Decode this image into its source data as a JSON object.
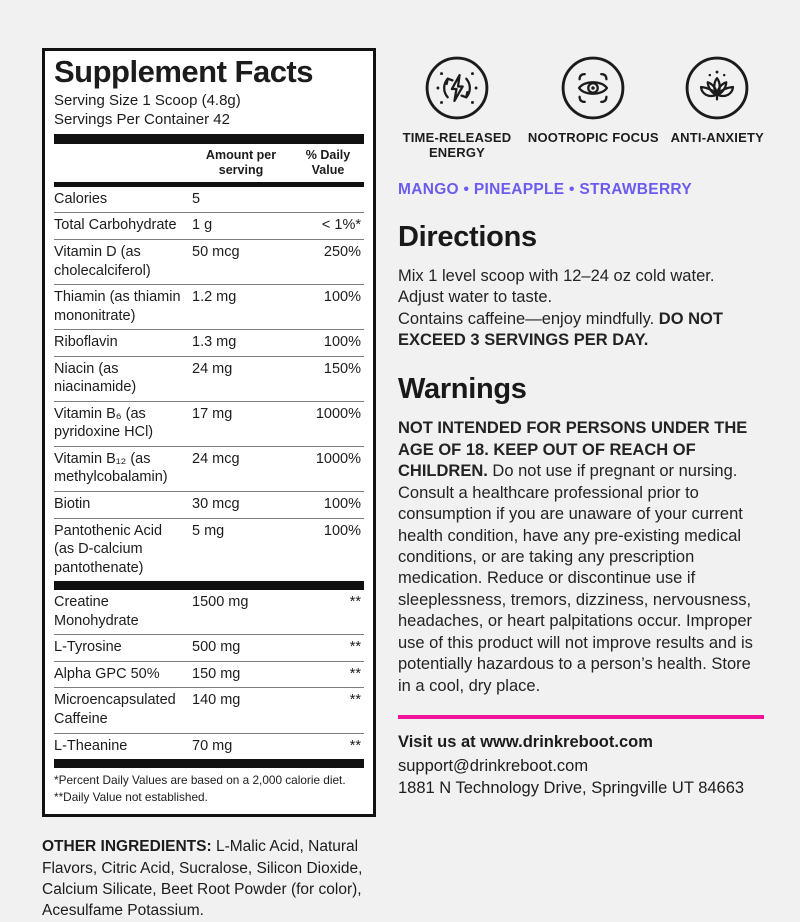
{
  "colors": {
    "accent_purple": "#6b5bee",
    "accent_pink": "#f0149b",
    "panel_border": "#111111",
    "page_bg": "#f1f1f2"
  },
  "panel": {
    "title": "Supplement Facts",
    "serving_size": "Serving Size 1 Scoop (4.8g)",
    "servings_per_container": "Servings Per Container 42",
    "col_amount": "Amount per serving",
    "col_dv": "% Daily Value",
    "rows_vitamins": [
      {
        "name": "Calories",
        "amount": "5",
        "dv": ""
      },
      {
        "name": "Total Carbohydrate",
        "amount": "1 g",
        "dv": "< 1%*"
      },
      {
        "name": "Vitamin D (as cholecalciferol)",
        "amount": "50 mcg",
        "dv": "250%"
      },
      {
        "name": "Thiamin (as thiamin mononitrate)",
        "amount": "1.2 mg",
        "dv": "100%"
      },
      {
        "name": "Riboflavin",
        "amount": "1.3 mg",
        "dv": "100%"
      },
      {
        "name": "Niacin (as niacinamide)",
        "amount": "24 mg",
        "dv": "150%"
      },
      {
        "name": "Vitamin B₆ (as pyridoxine HCl)",
        "amount": "17 mg",
        "dv": "1000%"
      },
      {
        "name": "Vitamin B₁₂ (as methylcobalamin)",
        "amount": "24 mcg",
        "dv": "1000%"
      },
      {
        "name": "Biotin",
        "amount": "30 mcg",
        "dv": "100%"
      },
      {
        "name": "Pantothenic Acid (as D-calcium pantothenate)",
        "amount": "5 mg",
        "dv": "100%"
      }
    ],
    "rows_actives": [
      {
        "name": "Creatine Monohydrate",
        "amount": "1500 mg",
        "dv": "**"
      },
      {
        "name": "L-Tyrosine",
        "amount": "500 mg",
        "dv": "**"
      },
      {
        "name": "Alpha GPC 50%",
        "amount": "150 mg",
        "dv": "**"
      },
      {
        "name": "Microencapsulated Caffeine",
        "amount": "140 mg",
        "dv": "**"
      },
      {
        "name": "L-Theanine",
        "amount": "70 mg",
        "dv": "**"
      }
    ],
    "footnote1": "*Percent Daily Values are based on a 2,000 calorie diet.",
    "footnote2": "**Daily Value not established."
  },
  "other_ingredients": {
    "label": "OTHER INGREDIENTS:",
    "text": " L-Malic Acid, Natural Flavors, Citric Acid, Sucralose, Silicon Dioxide, Calcium Silicate, Beet Root Powder (for color), Acesulfame Potassium."
  },
  "benefits": [
    {
      "icon": "time-released-energy-icon",
      "label": "TIME-RELEASED ENERGY"
    },
    {
      "icon": "nootropic-focus-icon",
      "label": "NOOTROPIC FOCUS"
    },
    {
      "icon": "anti-anxiety-icon",
      "label": "ANTI-ANXIETY"
    }
  ],
  "flavors": "MANGO • PINEAPPLE • STRAWBERRY",
  "directions": {
    "heading": "Directions",
    "line1": "Mix 1 level scoop with 12–24 oz cold water.",
    "line2": "Adjust water to taste.",
    "line3_regular": "Contains caffeine—enjoy mindfully. ",
    "line3_bold": "DO NOT EXCEED 3 SERVINGS PER DAY."
  },
  "warnings": {
    "heading": "Warnings",
    "bold_lead": "NOT INTENDED FOR PERSONS UNDER THE AGE OF 18. KEEP OUT OF REACH OF CHILDREN.",
    "body": " Do not use if pregnant or nursing. Consult a healthcare professional prior to consumption if you are unaware of your current health condition, have any pre-existing medical conditions, or are taking any prescription medication. Reduce or discontinue use if sleeplessness, tremors, dizziness, nervousness, headaches, or heart palpitations occur. Improper use of this product will not improve results and is potentially hazardous to a person’s health. Store in a cool, dry place."
  },
  "contact": {
    "line1": "Visit us at www.drinkreboot.com",
    "line2": "support@drinkreboot.com",
    "line3": "1881 N Technology Drive, Springville UT 84663"
  }
}
